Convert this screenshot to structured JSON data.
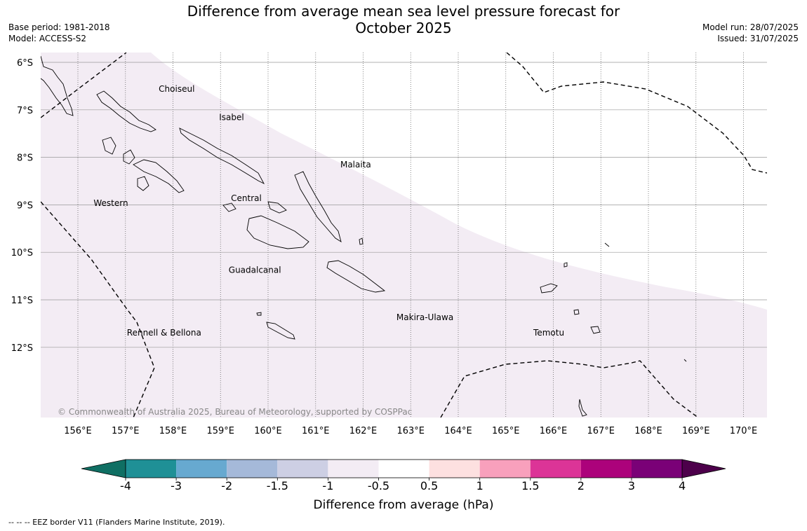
{
  "title": {
    "line1": "Difference from average mean sea level pressure forecast for",
    "line2": "October 2025"
  },
  "meta_left": {
    "base_period": "Base period: 1981-2018",
    "model": "Model: ACCESS-S2"
  },
  "meta_right": {
    "model_run": "Model run: 28/07/2025",
    "issued": "Issued: 31/07/2025"
  },
  "map": {
    "lon_labels": [
      "156°E",
      "157°E",
      "158°E",
      "159°E",
      "160°E",
      "161°E",
      "162°E",
      "163°E",
      "164°E",
      "165°E",
      "166°E",
      "167°E",
      "168°E",
      "169°E",
      "170°E"
    ],
    "lat_labels": [
      "6°S",
      "7°S",
      "8°S",
      "9°S",
      "10°S",
      "11°S",
      "12°S"
    ],
    "regions": [
      {
        "name": "Choiseul"
      },
      {
        "name": "Isabel"
      },
      {
        "name": "Malaita"
      },
      {
        "name": "Western"
      },
      {
        "name": "Central"
      },
      {
        "name": "Guadalcanal"
      },
      {
        "name": "Makira-Ulawa"
      },
      {
        "name": "Rennell & Bellona"
      },
      {
        "name": "Temotu"
      }
    ],
    "copyright": "© Commonwealth of Australia 2025, Bureau of Meteorology, supported by COSPPac",
    "shaded_category": "-1 to -0.5",
    "shaded_color": "#f3ecf4",
    "eez_line_style": "dashed"
  },
  "colorbar": {
    "label": "Difference from average (hPa)",
    "ticks": [
      "-4",
      "-3",
      "-2",
      "-1.5",
      "-1",
      "-0.5",
      "0.5",
      "1",
      "1.5",
      "2",
      "3",
      "4"
    ],
    "colors": [
      "#0f6f63",
      "#1f9096",
      "#67a9d0",
      "#a5b9d9",
      "#cdcfe4",
      "#f3ecf4",
      "#ffffff",
      "#fde0e0",
      "#f8a0bc",
      "#dc3497",
      "#ac027b",
      "#7a0177",
      "#4d004b"
    ]
  },
  "footer": "--  --  -- EEZ border V11 (Flanders Marine Institute, 2019)."
}
